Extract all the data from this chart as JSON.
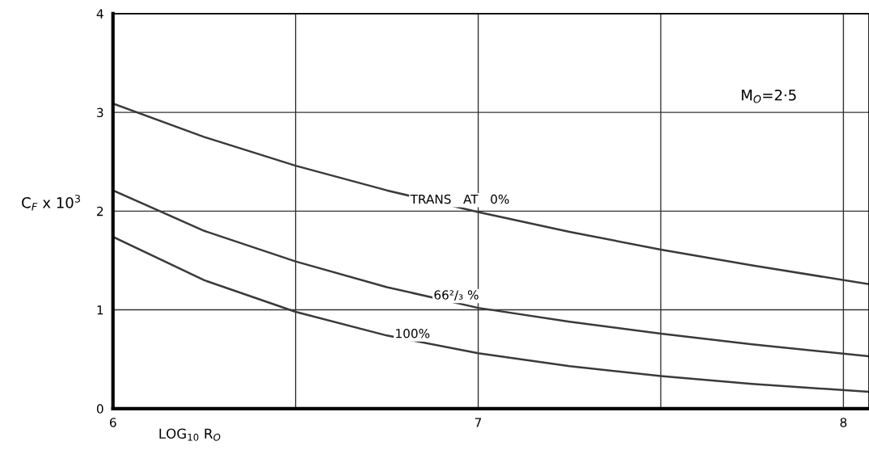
{
  "chart_data": {
    "type": "line",
    "ylabel": "C$_{F}$ x 10$^{3}$",
    "xlabel": "LOG$_{10}$ R$_{O}$",
    "x": [
      6,
      6.25,
      6.5,
      6.75,
      7,
      7.25,
      7.5,
      7.75,
      8.07
    ],
    "series": [
      {
        "color": "#3a3a3a",
        "values": [
          3.09,
          2.75,
          2.46,
          2.21,
          1.99,
          1.79,
          1.61,
          1.45,
          1.26
        ]
      },
      {
        "color": "#3a3a3a",
        "values": [
          2.21,
          1.8,
          1.49,
          1.23,
          1.02,
          0.88,
          0.76,
          0.65,
          0.53
        ]
      },
      {
        "color": "#3a3a3a",
        "values": [
          1.74,
          1.3,
          0.98,
          0.74,
          0.56,
          0.43,
          0.33,
          0.25,
          0.17
        ]
      }
    ],
    "xlim": [
      6,
      8.07
    ],
    "ylim": [
      0,
      4
    ],
    "xticks": [
      6,
      {
        "value": 6.5,
        "label": null
      },
      7,
      {
        "value": 7.5,
        "label": null
      },
      8
    ],
    "yticks": [
      0,
      1,
      2,
      3,
      4
    ],
    "grid": true,
    "line_style": "solid",
    "marker": "none",
    "annotations": [
      {
        "text": "TRANS   AT   0%",
        "x": 6.95,
        "y": 2.05
      },
      {
        "text": "66²/₃ %",
        "x": 6.94,
        "y": 1.08
      },
      {
        "text": "100%",
        "x": 6.82,
        "y": 0.69
      },
      "M$_{O}$=2·5"
    ]
  }
}
